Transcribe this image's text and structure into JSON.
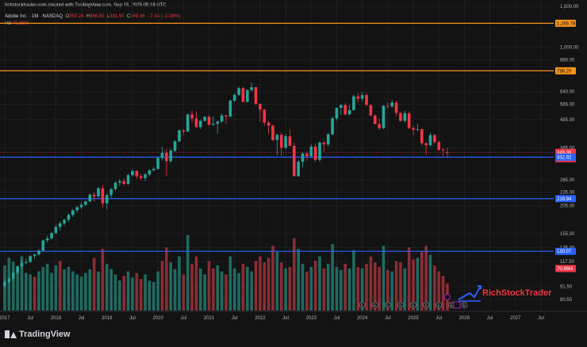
{
  "header": {
    "credit": "richstocktrader-com created with TradingView.com, Sep 15, 2025 05:18 UTC",
    "symbol": "Adobe Inc. · 1M · NASDAQ",
    "o_label": "O",
    "o_val": "350.24",
    "h_label": "H",
    "h_val": "366.50",
    "l_label": "L",
    "l_val": "331.50",
    "c_label": "C",
    "c_val": "349.36",
    "change": "−7.34 (−2.06%)",
    "vol_label": "Vol",
    "vol_val": "70.86M"
  },
  "watermark": {
    "text": "RichStockTrader"
  },
  "branding": {
    "tradingview": "TradingView"
  },
  "colors": {
    "up": "#26a69a",
    "down": "#f23645",
    "vol_up": "#1f6b61",
    "vol_down": "#8b2e33",
    "orange_line": "#f7931a",
    "blue_line": "#2962ff",
    "accent": "#2962ff"
  },
  "chart_data": {
    "type": "candlestick",
    "interval": "1M",
    "x_axis": {
      "tick_labels": [
        "2017",
        "Jul",
        "2018",
        "Jul",
        "2019",
        "Jul",
        "2020",
        "Jul",
        "2021",
        "Jul",
        "2022",
        "Jul",
        "2023",
        "Jul",
        "2024",
        "Jul",
        "2025",
        "Jul",
        "2026",
        "Jul",
        "2027",
        "Jul"
      ]
    },
    "y_axis": {
      "scale": "log",
      "ylim": [
        72,
        1500
      ],
      "tick_labels": [
        "1,500.00",
        "1,000.00",
        "880.00",
        "640.00",
        "565.00",
        "485.00",
        "365.00",
        "265.00",
        "235.00",
        "205.00",
        "155.00",
        "135.00",
        "117.50",
        "91.50",
        "80.50"
      ]
    },
    "price_labels": [
      "1,266.78",
      "788.20",
      "349.36",
      "332.92",
      "219.94",
      "130.07",
      "70.86M"
    ],
    "countdown": "15d 11h",
    "horizontal_lines": [
      {
        "value": 1266.78,
        "color": "orange"
      },
      {
        "value": 788.2,
        "color": "orange"
      },
      {
        "value": 332.92,
        "color": "blue"
      },
      {
        "value": 219.94,
        "color": "blue"
      },
      {
        "value": 130.07,
        "color": "blue"
      }
    ],
    "candles": [
      {
        "d": "2017-01",
        "o": 92,
        "h": 98,
        "l": 90,
        "c": 96
      },
      {
        "d": "2017-02",
        "o": 96,
        "h": 100,
        "l": 94,
        "c": 99
      },
      {
        "d": "2017-03",
        "o": 99,
        "h": 107,
        "l": 97,
        "c": 105
      },
      {
        "d": "2017-04",
        "o": 105,
        "h": 113,
        "l": 103,
        "c": 112
      },
      {
        "d": "2017-05",
        "o": 112,
        "h": 119,
        "l": 110,
        "c": 116
      },
      {
        "d": "2017-06",
        "o": 116,
        "h": 121,
        "l": 114,
        "c": 117
      },
      {
        "d": "2017-07",
        "o": 117,
        "h": 125,
        "l": 116,
        "c": 124
      },
      {
        "d": "2017-08",
        "o": 124,
        "h": 127,
        "l": 120,
        "c": 126
      },
      {
        "d": "2017-09",
        "o": 126,
        "h": 133,
        "l": 124,
        "c": 131
      },
      {
        "d": "2017-10",
        "o": 131,
        "h": 146,
        "l": 130,
        "c": 145
      },
      {
        "d": "2017-11",
        "o": 145,
        "h": 152,
        "l": 142,
        "c": 148
      },
      {
        "d": "2017-12",
        "o": 148,
        "h": 158,
        "l": 146,
        "c": 156
      },
      {
        "d": "2018-01",
        "o": 156,
        "h": 170,
        "l": 154,
        "c": 166
      },
      {
        "d": "2018-02",
        "o": 166,
        "h": 176,
        "l": 160,
        "c": 172
      },
      {
        "d": "2018-03",
        "o": 172,
        "h": 180,
        "l": 168,
        "c": 178
      },
      {
        "d": "2018-04",
        "o": 178,
        "h": 190,
        "l": 174,
        "c": 187
      },
      {
        "d": "2018-05",
        "o": 187,
        "h": 198,
        "l": 183,
        "c": 196
      },
      {
        "d": "2018-06",
        "o": 196,
        "h": 205,
        "l": 192,
        "c": 202
      },
      {
        "d": "2018-07",
        "o": 202,
        "h": 212,
        "l": 198,
        "c": 207
      },
      {
        "d": "2018-08",
        "o": 207,
        "h": 217,
        "l": 204,
        "c": 214
      },
      {
        "d": "2018-09",
        "o": 214,
        "h": 232,
        "l": 212,
        "c": 229
      },
      {
        "d": "2018-10",
        "o": 229,
        "h": 235,
        "l": 214,
        "c": 225
      },
      {
        "d": "2018-11",
        "o": 225,
        "h": 247,
        "l": 222,
        "c": 244
      },
      {
        "d": "2018-12",
        "o": 244,
        "h": 252,
        "l": 200,
        "c": 210
      },
      {
        "d": "2019-01",
        "o": 210,
        "h": 232,
        "l": 198,
        "c": 228
      },
      {
        "d": "2019-02",
        "o": 228,
        "h": 245,
        "l": 222,
        "c": 242
      },
      {
        "d": "2019-03",
        "o": 242,
        "h": 262,
        "l": 238,
        "c": 258
      },
      {
        "d": "2019-04",
        "o": 258,
        "h": 268,
        "l": 250,
        "c": 262
      },
      {
        "d": "2019-05",
        "o": 262,
        "h": 270,
        "l": 250,
        "c": 255
      },
      {
        "d": "2019-06",
        "o": 255,
        "h": 282,
        "l": 252,
        "c": 278
      },
      {
        "d": "2019-07",
        "o": 278,
        "h": 295,
        "l": 274,
        "c": 290
      },
      {
        "d": "2019-08",
        "o": 290,
        "h": 292,
        "l": 268,
        "c": 275
      },
      {
        "d": "2019-09",
        "o": 275,
        "h": 282,
        "l": 264,
        "c": 270
      },
      {
        "d": "2019-10",
        "o": 270,
        "h": 285,
        "l": 262,
        "c": 280
      },
      {
        "d": "2019-11",
        "o": 280,
        "h": 296,
        "l": 276,
        "c": 292
      },
      {
        "d": "2019-12",
        "o": 292,
        "h": 302,
        "l": 288,
        "c": 296
      },
      {
        "d": "2020-01",
        "o": 296,
        "h": 335,
        "l": 293,
        "c": 330
      },
      {
        "d": "2020-02",
        "o": 330,
        "h": 370,
        "l": 322,
        "c": 348
      },
      {
        "d": "2020-03",
        "o": 348,
        "h": 362,
        "l": 275,
        "c": 320
      },
      {
        "d": "2020-04",
        "o": 320,
        "h": 362,
        "l": 315,
        "c": 355
      },
      {
        "d": "2020-05",
        "o": 355,
        "h": 395,
        "l": 350,
        "c": 390
      },
      {
        "d": "2020-06",
        "o": 390,
        "h": 440,
        "l": 385,
        "c": 435
      },
      {
        "d": "2020-07",
        "o": 435,
        "h": 440,
        "l": 415,
        "c": 430
      },
      {
        "d": "2020-08",
        "o": 430,
        "h": 515,
        "l": 428,
        "c": 510
      },
      {
        "d": "2020-09",
        "o": 510,
        "h": 530,
        "l": 470,
        "c": 490
      },
      {
        "d": "2020-10",
        "o": 490,
        "h": 525,
        "l": 445,
        "c": 450
      },
      {
        "d": "2020-11",
        "o": 450,
        "h": 485,
        "l": 440,
        "c": 478
      },
      {
        "d": "2020-12",
        "o": 478,
        "h": 500,
        "l": 475,
        "c": 498
      },
      {
        "d": "2021-01",
        "o": 498,
        "h": 505,
        "l": 455,
        "c": 460
      },
      {
        "d": "2021-02",
        "o": 460,
        "h": 500,
        "l": 455,
        "c": 465
      },
      {
        "d": "2021-03",
        "o": 465,
        "h": 480,
        "l": 420,
        "c": 475
      },
      {
        "d": "2021-04",
        "o": 475,
        "h": 515,
        "l": 470,
        "c": 505
      },
      {
        "d": "2021-05",
        "o": 505,
        "h": 508,
        "l": 465,
        "c": 500
      },
      {
        "d": "2021-06",
        "o": 500,
        "h": 590,
        "l": 495,
        "c": 585
      },
      {
        "d": "2021-07",
        "o": 585,
        "h": 630,
        "l": 575,
        "c": 620
      },
      {
        "d": "2021-08",
        "o": 620,
        "h": 675,
        "l": 615,
        "c": 663
      },
      {
        "d": "2021-09",
        "o": 663,
        "h": 673,
        "l": 575,
        "c": 578
      },
      {
        "d": "2021-10",
        "o": 578,
        "h": 655,
        "l": 575,
        "c": 650
      },
      {
        "d": "2021-11",
        "o": 650,
        "h": 699,
        "l": 640,
        "c": 669
      },
      {
        "d": "2021-12",
        "o": 669,
        "h": 672,
        "l": 560,
        "c": 567
      },
      {
        "d": "2022-01",
        "o": 567,
        "h": 570,
        "l": 475,
        "c": 535
      },
      {
        "d": "2022-02",
        "o": 535,
        "h": 540,
        "l": 455,
        "c": 470
      },
      {
        "d": "2022-03",
        "o": 470,
        "h": 478,
        "l": 420,
        "c": 456
      },
      {
        "d": "2022-04",
        "o": 456,
        "h": 460,
        "l": 390,
        "c": 395
      },
      {
        "d": "2022-05",
        "o": 395,
        "h": 420,
        "l": 340,
        "c": 416
      },
      {
        "d": "2022-06",
        "o": 416,
        "h": 425,
        "l": 338,
        "c": 366
      },
      {
        "d": "2022-07",
        "o": 366,
        "h": 420,
        "l": 360,
        "c": 410
      },
      {
        "d": "2022-08",
        "o": 410,
        "h": 440,
        "l": 370,
        "c": 373
      },
      {
        "d": "2022-09",
        "o": 373,
        "h": 385,
        "l": 275,
        "c": 275
      },
      {
        "d": "2022-10",
        "o": 275,
        "h": 325,
        "l": 275,
        "c": 318
      },
      {
        "d": "2022-11",
        "o": 318,
        "h": 350,
        "l": 300,
        "c": 345
      },
      {
        "d": "2022-12",
        "o": 345,
        "h": 352,
        "l": 322,
        "c": 336
      },
      {
        "d": "2023-01",
        "o": 336,
        "h": 380,
        "l": 330,
        "c": 370
      },
      {
        "d": "2023-02",
        "o": 370,
        "h": 382,
        "l": 318,
        "c": 324
      },
      {
        "d": "2023-03",
        "o": 324,
        "h": 390,
        "l": 318,
        "c": 385
      },
      {
        "d": "2023-04",
        "o": 385,
        "h": 390,
        "l": 350,
        "c": 378
      },
      {
        "d": "2023-05",
        "o": 378,
        "h": 425,
        "l": 370,
        "c": 418
      },
      {
        "d": "2023-06",
        "o": 418,
        "h": 500,
        "l": 415,
        "c": 490
      },
      {
        "d": "2023-07",
        "o": 490,
        "h": 545,
        "l": 480,
        "c": 545
      },
      {
        "d": "2023-08",
        "o": 545,
        "h": 565,
        "l": 505,
        "c": 560
      },
      {
        "d": "2023-09",
        "o": 560,
        "h": 570,
        "l": 505,
        "c": 510
      },
      {
        "d": "2023-10",
        "o": 510,
        "h": 560,
        "l": 505,
        "c": 532
      },
      {
        "d": "2023-11",
        "o": 532,
        "h": 620,
        "l": 530,
        "c": 611
      },
      {
        "d": "2023-12",
        "o": 611,
        "h": 634,
        "l": 575,
        "c": 597
      },
      {
        "d": "2024-01",
        "o": 597,
        "h": 638,
        "l": 580,
        "c": 618
      },
      {
        "d": "2024-02",
        "o": 618,
        "h": 630,
        "l": 555,
        "c": 560
      },
      {
        "d": "2024-03",
        "o": 560,
        "h": 562,
        "l": 500,
        "c": 505
      },
      {
        "d": "2024-04",
        "o": 505,
        "h": 510,
        "l": 465,
        "c": 463
      },
      {
        "d": "2024-05",
        "o": 463,
        "h": 490,
        "l": 435,
        "c": 445
      },
      {
        "d": "2024-06",
        "o": 445,
        "h": 560,
        "l": 440,
        "c": 556
      },
      {
        "d": "2024-07",
        "o": 556,
        "h": 575,
        "l": 540,
        "c": 552
      },
      {
        "d": "2024-08",
        "o": 552,
        "h": 590,
        "l": 545,
        "c": 574
      },
      {
        "d": "2024-09",
        "o": 574,
        "h": 585,
        "l": 500,
        "c": 518
      },
      {
        "d": "2024-10",
        "o": 518,
        "h": 522,
        "l": 475,
        "c": 478
      },
      {
        "d": "2024-11",
        "o": 478,
        "h": 530,
        "l": 470,
        "c": 516
      },
      {
        "d": "2024-12",
        "o": 516,
        "h": 525,
        "l": 440,
        "c": 445
      },
      {
        "d": "2025-01",
        "o": 445,
        "h": 455,
        "l": 415,
        "c": 437
      },
      {
        "d": "2025-02",
        "o": 437,
        "h": 465,
        "l": 430,
        "c": 440
      },
      {
        "d": "2025-03",
        "o": 440,
        "h": 445,
        "l": 375,
        "c": 383
      },
      {
        "d": "2025-04",
        "o": 383,
        "h": 385,
        "l": 340,
        "c": 375
      },
      {
        "d": "2025-05",
        "o": 375,
        "h": 425,
        "l": 370,
        "c": 415
      },
      {
        "d": "2025-06",
        "o": 415,
        "h": 420,
        "l": 380,
        "c": 387
      },
      {
        "d": "2025-07",
        "o": 387,
        "h": 392,
        "l": 355,
        "c": 358
      },
      {
        "d": "2025-08",
        "o": 358,
        "h": 365,
        "l": 335,
        "c": 357
      },
      {
        "d": "2025-09",
        "o": 350.24,
        "h": 366.5,
        "l": 331.5,
        "c": 349.36
      }
    ],
    "volume": [
      [
        60,
        1
      ],
      [
        70,
        1
      ],
      [
        65,
        1
      ],
      [
        55,
        1
      ],
      [
        72,
        1
      ],
      [
        50,
        1
      ],
      [
        48,
        1
      ],
      [
        45,
        0
      ],
      [
        52,
        1
      ],
      [
        58,
        1
      ],
      [
        62,
        1
      ],
      [
        50,
        1
      ],
      [
        60,
        1
      ],
      [
        66,
        0
      ],
      [
        55,
        1
      ],
      [
        58,
        1
      ],
      [
        52,
        1
      ],
      [
        48,
        1
      ],
      [
        45,
        1
      ],
      [
        50,
        1
      ],
      [
        55,
        1
      ],
      [
        70,
        0
      ],
      [
        52,
        1
      ],
      [
        82,
        0
      ],
      [
        62,
        1
      ],
      [
        55,
        1
      ],
      [
        48,
        1
      ],
      [
        40,
        1
      ],
      [
        46,
        0
      ],
      [
        52,
        1
      ],
      [
        44,
        1
      ],
      [
        50,
        0
      ],
      [
        42,
        0
      ],
      [
        48,
        1
      ],
      [
        40,
        1
      ],
      [
        38,
        1
      ],
      [
        52,
        1
      ],
      [
        66,
        0
      ],
      [
        84,
        0
      ],
      [
        64,
        1
      ],
      [
        55,
        1
      ],
      [
        72,
        1
      ],
      [
        48,
        0
      ],
      [
        100,
        1
      ],
      [
        62,
        0
      ],
      [
        72,
        0
      ],
      [
        56,
        1
      ],
      [
        48,
        1
      ],
      [
        66,
        0
      ],
      [
        56,
        0
      ],
      [
        60,
        1
      ],
      [
        52,
        1
      ],
      [
        48,
        0
      ],
      [
        72,
        1
      ],
      [
        56,
        1
      ],
      [
        50,
        1
      ],
      [
        62,
        0
      ],
      [
        58,
        1
      ],
      [
        52,
        1
      ],
      [
        66,
        0
      ],
      [
        72,
        0
      ],
      [
        64,
        0
      ],
      [
        70,
        0
      ],
      [
        86,
        0
      ],
      [
        78,
        1
      ],
      [
        64,
        0
      ],
      [
        56,
        1
      ],
      [
        58,
        0
      ],
      [
        96,
        0
      ],
      [
        82,
        1
      ],
      [
        62,
        1
      ],
      [
        52,
        0
      ],
      [
        58,
        1
      ],
      [
        66,
        0
      ],
      [
        72,
        1
      ],
      [
        56,
        0
      ],
      [
        62,
        1
      ],
      [
        88,
        1
      ],
      [
        58,
        1
      ],
      [
        54,
        1
      ],
      [
        62,
        0
      ],
      [
        56,
        1
      ],
      [
        80,
        1
      ],
      [
        58,
        0
      ],
      [
        56,
        1
      ],
      [
        62,
        0
      ],
      [
        72,
        0
      ],
      [
        64,
        0
      ],
      [
        58,
        0
      ],
      [
        86,
        1
      ],
      [
        54,
        0
      ],
      [
        52,
        1
      ],
      [
        66,
        0
      ],
      [
        64,
        0
      ],
      [
        56,
        1
      ],
      [
        84,
        0
      ],
      [
        68,
        0
      ],
      [
        70,
        1
      ],
      [
        78,
        0
      ],
      [
        86,
        0
      ],
      [
        74,
        1
      ],
      [
        60,
        0
      ],
      [
        52,
        0
      ],
      [
        46,
        0
      ],
      [
        36,
        0
      ]
    ]
  }
}
